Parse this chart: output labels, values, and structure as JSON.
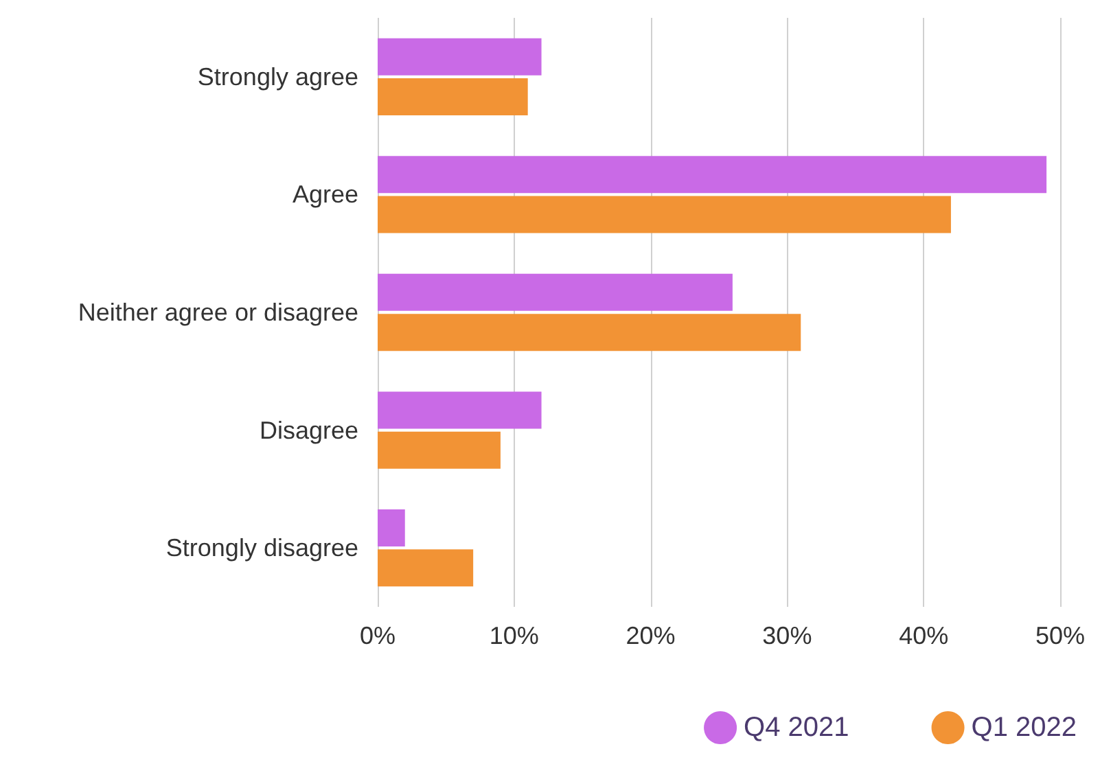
{
  "chart_data": {
    "type": "bar",
    "orientation": "horizontal",
    "categories": [
      "Strongly agree",
      "Agree",
      "Neither agree or disagree",
      "Disagree",
      "Strongly disagree"
    ],
    "series": [
      {
        "name": "Q4 2021",
        "color": "#c96ae6",
        "values": [
          12,
          49,
          26,
          12,
          2
        ]
      },
      {
        "name": "Q1 2022",
        "color": "#f29335",
        "values": [
          11,
          42,
          31,
          9,
          7
        ]
      }
    ],
    "xlim": [
      0,
      50
    ],
    "xticks": [
      {
        "value": 0,
        "label": "0%"
      },
      {
        "value": 10,
        "label": "10%"
      },
      {
        "value": 20,
        "label": "20%"
      },
      {
        "value": 30,
        "label": "30%"
      },
      {
        "value": 40,
        "label": "40%"
      },
      {
        "value": 50,
        "label": "50%"
      }
    ],
    "grid": "x",
    "legend": "bottom right"
  }
}
